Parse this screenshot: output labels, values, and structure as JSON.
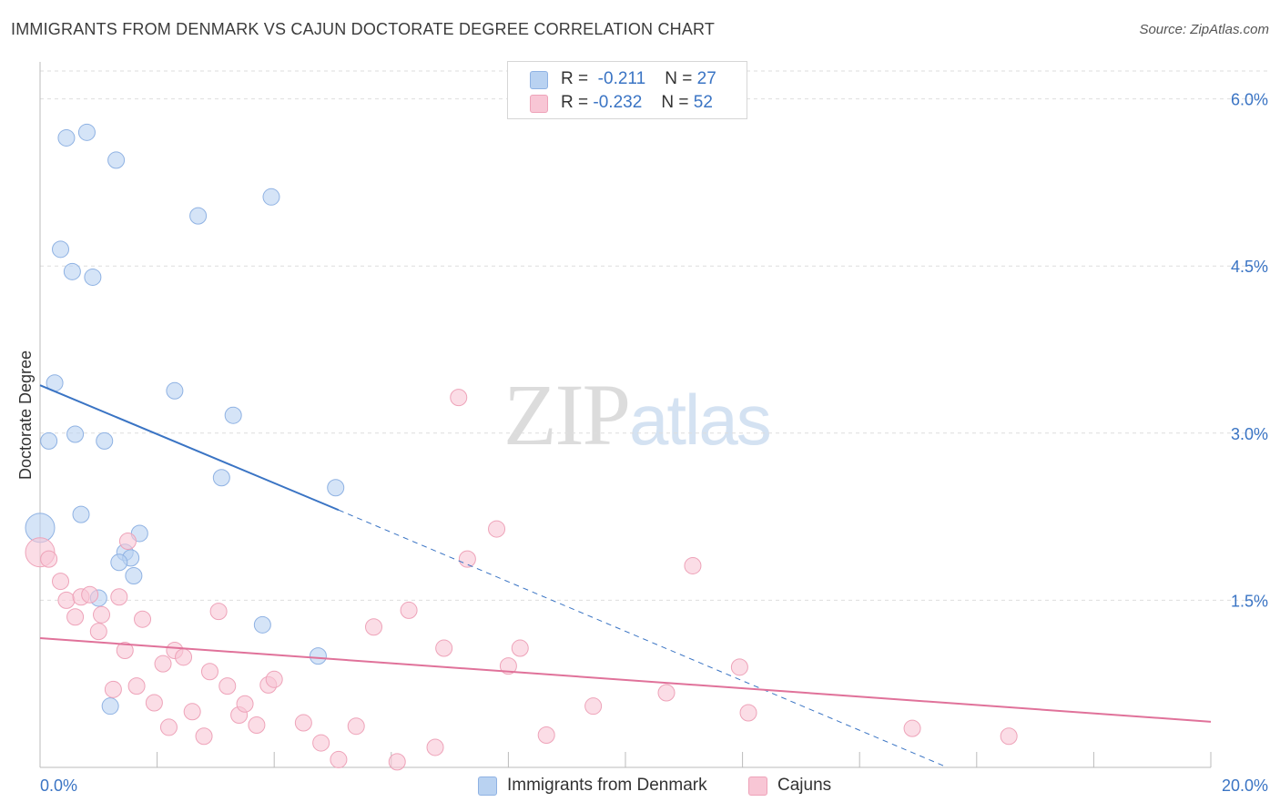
{
  "header": {
    "title": "IMMIGRANTS FROM DENMARK VS CAJUN DOCTORATE DEGREE CORRELATION CHART",
    "source": "Source: ZipAtlas.com"
  },
  "watermark": {
    "zip": "ZIP",
    "atlas": "atlas"
  },
  "stats_legend": {
    "rows": [
      {
        "r_label": "R =",
        "r_value": "-0.211",
        "n_label": "N =",
        "n_value": "27",
        "color": "#b9d2f1",
        "stroke": "#8fb2e3"
      },
      {
        "r_label": "R =",
        "r_value": "-0.232",
        "n_label": "N =",
        "n_value": "52",
        "color": "#f8c6d5",
        "stroke": "#eea3b9"
      }
    ]
  },
  "bottom_legend": {
    "items": [
      {
        "label": "Immigrants from Denmark",
        "color": "#b9d2f1",
        "stroke": "#8fb2e3"
      },
      {
        "label": "Cajuns",
        "color": "#f8c6d5",
        "stroke": "#eea3b9"
      }
    ]
  },
  "chart_data": {
    "type": "scatter",
    "title": "IMMIGRANTS FROM DENMARK VS CAJUN DOCTORATE DEGREE CORRELATION CHART",
    "ylabel": "Doctorate Degree",
    "xlabel": "",
    "xlim": [
      0,
      20
    ],
    "ylim": [
      0,
      6.25
    ],
    "x_tick_labels": [
      "0.0%",
      "20.0%"
    ],
    "y_tick_labels": [
      "1.5%",
      "3.0%",
      "4.5%",
      "6.0%"
    ],
    "y_ticks": [
      1.5,
      3.0,
      4.5,
      6.0
    ],
    "grid": "horizontal dashed",
    "legend_position": "top-center",
    "series": [
      {
        "name": "Immigrants from Denmark",
        "color": "#3a74c4",
        "fill": "#b9d2f1",
        "points": [
          [
            0.45,
            5.65
          ],
          [
            0.8,
            5.7
          ],
          [
            1.3,
            5.45
          ],
          [
            0.35,
            4.65
          ],
          [
            0.55,
            4.45
          ],
          [
            0.9,
            4.4
          ],
          [
            2.7,
            4.95
          ],
          [
            3.95,
            5.12
          ],
          [
            0.25,
            3.45
          ],
          [
            0.15,
            2.93
          ],
          [
            0.6,
            2.99
          ],
          [
            1.1,
            2.93
          ],
          [
            2.3,
            3.38
          ],
          [
            3.3,
            3.16
          ],
          [
            3.1,
            2.6
          ],
          [
            5.05,
            2.51
          ],
          [
            0.7,
            2.27
          ],
          [
            0.0,
            2.15
          ],
          [
            1.7,
            2.1
          ],
          [
            1.45,
            1.93
          ],
          [
            1.55,
            1.88
          ],
          [
            1.35,
            1.84
          ],
          [
            1.6,
            1.72
          ],
          [
            1.0,
            1.52
          ],
          [
            3.8,
            1.28
          ],
          [
            4.75,
            1.0
          ],
          [
            1.2,
            0.55
          ]
        ],
        "trend": {
          "x_solid": [
            0,
            5.1
          ],
          "y_solid": [
            3.43,
            2.31
          ],
          "x_dashed": [
            5.1,
            15.5
          ],
          "y_dashed": [
            2.31,
            0.0
          ]
        }
      },
      {
        "name": "Cajuns",
        "color": "#e0729a",
        "fill": "#f8c6d5",
        "points": [
          [
            0.0,
            1.93
          ],
          [
            0.15,
            1.87
          ],
          [
            0.35,
            1.67
          ],
          [
            0.45,
            1.5
          ],
          [
            0.6,
            1.35
          ],
          [
            0.7,
            1.53
          ],
          [
            0.85,
            1.55
          ],
          [
            1.0,
            1.22
          ],
          [
            1.05,
            1.37
          ],
          [
            1.35,
            1.53
          ],
          [
            1.5,
            2.03
          ],
          [
            1.75,
            1.33
          ],
          [
            1.45,
            1.05
          ],
          [
            1.25,
            0.7
          ],
          [
            1.65,
            0.73
          ],
          [
            1.95,
            0.58
          ],
          [
            2.1,
            0.93
          ],
          [
            2.3,
            1.05
          ],
          [
            2.45,
            0.99
          ],
          [
            2.2,
            0.36
          ],
          [
            2.6,
            0.5
          ],
          [
            2.8,
            0.28
          ],
          [
            2.9,
            0.86
          ],
          [
            3.05,
            1.4
          ],
          [
            3.2,
            0.73
          ],
          [
            3.4,
            0.47
          ],
          [
            3.5,
            0.57
          ],
          [
            3.7,
            0.38
          ],
          [
            3.9,
            0.74
          ],
          [
            4.0,
            0.79
          ],
          [
            4.5,
            0.4
          ],
          [
            4.8,
            0.22
          ],
          [
            5.1,
            0.07
          ],
          [
            5.4,
            0.37
          ],
          [
            5.7,
            1.26
          ],
          [
            6.1,
            0.05
          ],
          [
            6.3,
            1.41
          ],
          [
            6.75,
            0.18
          ],
          [
            6.9,
            1.07
          ],
          [
            7.15,
            3.32
          ],
          [
            7.3,
            1.87
          ],
          [
            7.8,
            2.14
          ],
          [
            8.0,
            0.91
          ],
          [
            8.2,
            1.07
          ],
          [
            8.65,
            0.29
          ],
          [
            9.45,
            0.55
          ],
          [
            10.7,
            0.67
          ],
          [
            11.15,
            1.81
          ],
          [
            11.95,
            0.9
          ],
          [
            12.1,
            0.49
          ],
          [
            14.9,
            0.35
          ],
          [
            16.55,
            0.28
          ]
        ],
        "trend": {
          "x_solid": [
            0,
            20
          ],
          "y_solid": [
            1.16,
            0.41
          ]
        }
      }
    ]
  }
}
